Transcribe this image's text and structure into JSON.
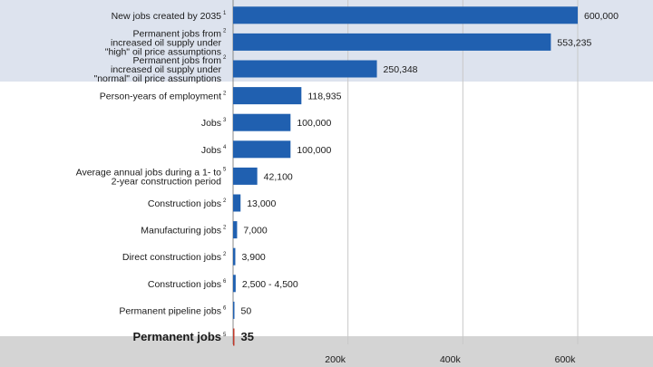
{
  "chart_data": {
    "type": "bar",
    "orientation": "horizontal",
    "title": "",
    "xlabel": "",
    "ylabel": "",
    "xlim": [
      0,
      660000
    ],
    "xticks": [
      {
        "value": 200000,
        "label": "200k"
      },
      {
        "value": 400000,
        "label": "400k"
      },
      {
        "value": 600000,
        "label": "600k"
      }
    ],
    "bar_color": "#2060b0",
    "highlight_bar_color": "#c0392b",
    "band_color_top": "#dde3ee",
    "band_color_bottom": "#d4d4d4",
    "bars": [
      {
        "label_lines": [
          "New jobs created by 2035"
        ],
        "footnote": "1",
        "value": 600000,
        "value_label": "600,000"
      },
      {
        "label_lines": [
          "Permanent jobs from",
          "increased oil supply under",
          "\"high\" oil price assumptions"
        ],
        "footnote": "2",
        "value": 553235,
        "value_label": "553,235"
      },
      {
        "label_lines": [
          "Permanent jobs from",
          "increased oil supply under",
          "\"normal\" oil price assumptions"
        ],
        "footnote": "2",
        "value": 250348,
        "value_label": "250,348"
      },
      {
        "label_lines": [
          "Person-years of employment"
        ],
        "footnote": "2",
        "value": 118935,
        "value_label": "118,935"
      },
      {
        "label_lines": [
          "Jobs"
        ],
        "footnote": "3",
        "value": 100000,
        "value_label": "100,000"
      },
      {
        "label_lines": [
          "Jobs"
        ],
        "footnote": "4",
        "value": 100000,
        "value_label": "100,000"
      },
      {
        "label_lines": [
          "Average annual jobs during a 1- to",
          "2-year construction period"
        ],
        "footnote": "5",
        "value": 42100,
        "value_label": "42,100"
      },
      {
        "label_lines": [
          "Construction jobs"
        ],
        "footnote": "2",
        "value": 13000,
        "value_label": "13,000"
      },
      {
        "label_lines": [
          "Manufacturing jobs"
        ],
        "footnote": "2",
        "value": 7000,
        "value_label": "7,000"
      },
      {
        "label_lines": [
          "Direct construction jobs"
        ],
        "footnote": "2",
        "value": 3900,
        "value_label": "3,900"
      },
      {
        "label_lines": [
          "Construction jobs"
        ],
        "footnote": "6",
        "value": 4500,
        "value_label": "2,500 - 4,500"
      },
      {
        "label_lines": [
          "Permanent pipeline jobs"
        ],
        "footnote": "6",
        "value": 50,
        "value_label": "50"
      },
      {
        "label_lines": [
          "Permanent jobs"
        ],
        "footnote": "5",
        "value": 35,
        "value_label": "35",
        "emphasis": true
      }
    ]
  }
}
